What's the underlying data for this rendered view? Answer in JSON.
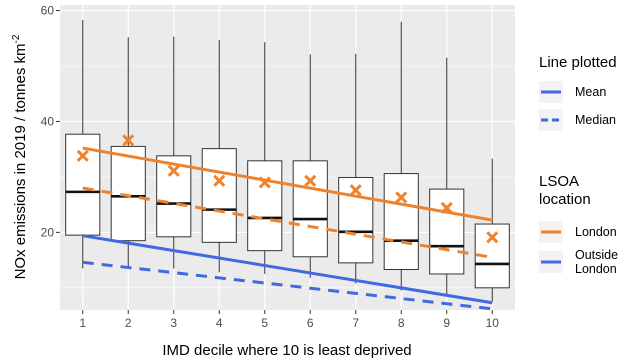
{
  "chart_data": {
    "type": "box",
    "xlabel": "IMD decile where 10 is least deprived",
    "ylabel_main": "NOx emissions in  2019 / tonnes  km",
    "ylabel_sup": "-2",
    "categories": [
      "1",
      "2",
      "3",
      "4",
      "5",
      "6",
      "7",
      "8",
      "9",
      "10"
    ],
    "ylim": [
      6,
      61
    ],
    "yticks": [
      20,
      40,
      60
    ],
    "grid": true,
    "boxes": [
      {
        "x": 1,
        "whisker_low": 13.5,
        "q1": 19.5,
        "median": 27.3,
        "q3": 37.7,
        "whisker_high": 58.3
      },
      {
        "x": 2,
        "whisker_low": 13.5,
        "q1": 18.5,
        "median": 26.5,
        "q3": 35.5,
        "whisker_high": 55.2
      },
      {
        "x": 3,
        "whisker_low": 13.5,
        "q1": 19.2,
        "median": 25.2,
        "q3": 33.8,
        "whisker_high": 55.3
      },
      {
        "x": 4,
        "whisker_low": 12.8,
        "q1": 18.2,
        "median": 24.1,
        "q3": 35.1,
        "whisker_high": 54.7
      },
      {
        "x": 5,
        "whisker_low": 12.5,
        "q1": 16.7,
        "median": 22.6,
        "q3": 32.9,
        "whisker_high": 54.3
      },
      {
        "x": 6,
        "whisker_low": 11.8,
        "q1": 15.6,
        "median": 22.4,
        "q3": 32.9,
        "whisker_high": 52.1
      },
      {
        "x": 7,
        "whisker_low": 10.8,
        "q1": 14.5,
        "median": 20.1,
        "q3": 29.9,
        "whisker_high": 52.2
      },
      {
        "x": 8,
        "whisker_low": 9.5,
        "q1": 13.3,
        "median": 18.5,
        "q3": 30.6,
        "whisker_high": 58.0
      },
      {
        "x": 9,
        "whisker_low": 8.5,
        "q1": 12.5,
        "median": 17.5,
        "q3": 27.8,
        "whisker_high": 51.5
      },
      {
        "x": 10,
        "whisker_low": 7.5,
        "q1": 10.0,
        "median": 14.3,
        "q3": 21.5,
        "whisker_high": 33.3
      }
    ],
    "london_means": [
      33.8,
      36.6,
      31.1,
      29.3,
      29.0,
      29.3,
      27.6,
      26.3,
      24.4,
      19.1
    ],
    "fit_lines": [
      {
        "group": "London",
        "stat": "Mean",
        "y_start": 35.2,
        "y_end": 22.2
      },
      {
        "group": "London",
        "stat": "Median",
        "y_start": 28.0,
        "y_end": 15.5
      },
      {
        "group": "Outside London",
        "stat": "Mean",
        "y_start": 19.4,
        "y_end": 7.3
      },
      {
        "group": "Outside London",
        "stat": "Median",
        "y_start": 14.6,
        "y_end": 6.2
      }
    ],
    "legend": {
      "line_title": "Line plotted",
      "line_items": [
        {
          "label": "Mean",
          "dash": "solid"
        },
        {
          "label": "Median",
          "dash": "dashed"
        }
      ],
      "loc_title": [
        "LSOA",
        "location"
      ],
      "loc_items": [
        {
          "label": [
            "London"
          ],
          "color": "#f0822c"
        },
        {
          "label": [
            "Outside",
            "London"
          ],
          "color": "#4169e1"
        }
      ],
      "placement": "right"
    },
    "colors": {
      "london": "#f0822c",
      "outside": "#4169e1",
      "panel": "#ebebeb",
      "grid": "#ffffff",
      "box_fill": "#ffffff",
      "box_stroke": "#333333"
    }
  }
}
